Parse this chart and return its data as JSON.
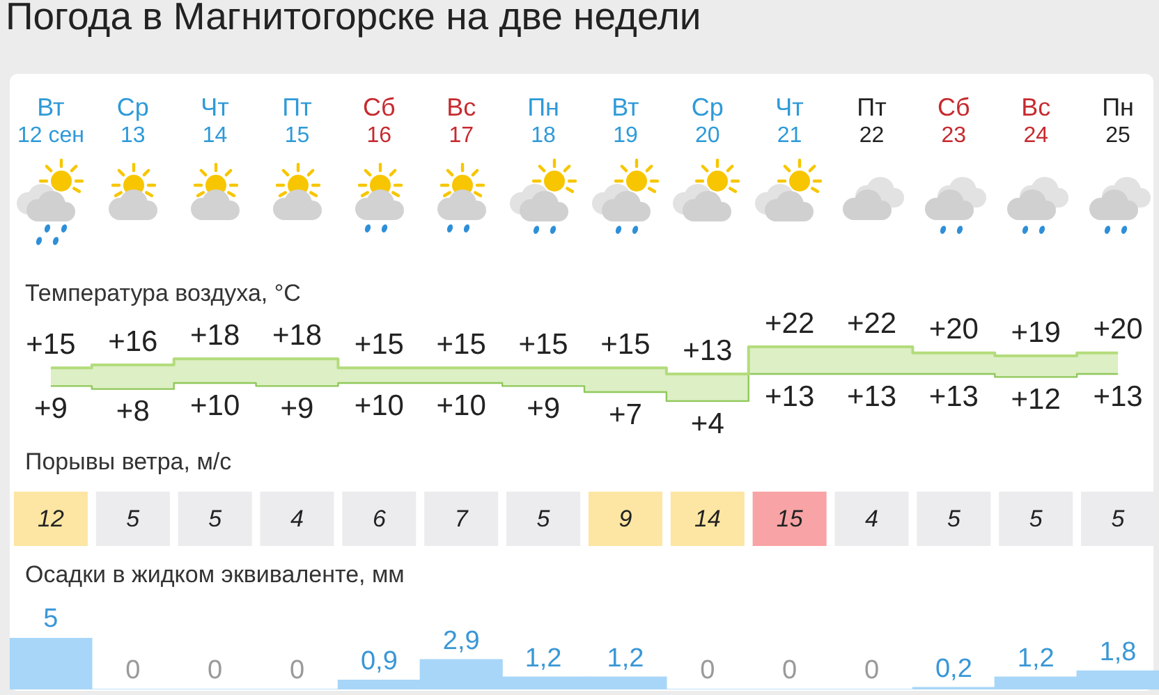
{
  "chart_data": [
    {
      "type": "step",
      "title": "Погода в Магнитогорске на две недели",
      "subtitle": "Температура воздуха, °C",
      "categories": [
        "Вт 12 сен",
        "Ср 13",
        "Чт 14",
        "Пт 15",
        "Сб 16",
        "Вс 17",
        "Пн 18",
        "Вт 19",
        "Ср 20",
        "Чт 21",
        "Пт 22",
        "Сб 23",
        "Вс 24",
        "Пн 25"
      ],
      "series": [
        {
          "values": [
            15,
            16,
            18,
            18,
            15,
            15,
            15,
            15,
            13,
            22,
            22,
            20,
            19,
            20
          ],
          "lower": [
            9,
            8,
            10,
            9,
            10,
            10,
            9,
            7,
            4,
            13,
            13,
            13,
            12,
            13
          ],
          "upper": [
            15,
            16,
            18,
            18,
            15,
            15,
            15,
            15,
            13,
            22,
            22,
            20,
            19,
            20
          ],
          "color": "#b3dc7c",
          "value_labels": [
            "+15",
            "+16",
            "+18",
            "+18",
            "+15",
            "+15",
            "+15",
            "+15",
            "+13",
            "+22",
            "+22",
            "+20",
            "+19",
            "+20"
          ]
        },
        {
          "values": [
            9,
            8,
            10,
            9,
            10,
            10,
            9,
            7,
            4,
            13,
            13,
            13,
            12,
            13
          ],
          "color": "#8fc85a",
          "value_labels": [
            "+9",
            "+8",
            "+10",
            "+9",
            "+10",
            "+10",
            "+9",
            "+7",
            "+4",
            "+13",
            "+13",
            "+13",
            "+12",
            "+13"
          ]
        }
      ],
      "tick_labels": "x"
    },
    {
      "type": "heatmap",
      "title": "Порывы ветра, м/с",
      "categories": [
        null,
        null,
        null,
        null,
        null,
        null,
        null,
        null,
        null,
        null,
        null,
        null,
        null,
        null
      ],
      "y_categories": [
        null
      ],
      "cells": [
        [
          12,
          5,
          5,
          4,
          6,
          7,
          5,
          9,
          14,
          15,
          4,
          5,
          5,
          5
        ]
      ],
      "colors": [
        "#fde6a3",
        "#ececee",
        "#ececee",
        "#ececee",
        "#ececee",
        "#ececee",
        "#ececee",
        "#fde6a3",
        "#fde6a3",
        "#f8a3a5",
        "#ececee",
        "#ececee",
        "#ececee",
        "#ececee"
      ],
      "data_labels": true,
      "tick_labels": false
    },
    {
      "type": "bar",
      "title": "Осадки в жидком эквиваленте, мм",
      "categories": [
        null,
        null,
        null,
        null,
        null,
        null,
        null,
        null,
        null,
        null,
        null,
        null,
        null,
        null
      ],
      "values": [
        5,
        0,
        0,
        0,
        0.9,
        2.9,
        1.2,
        1.2,
        0,
        0,
        0,
        0.2,
        1.2,
        1.8
      ],
      "value_labels": [
        "5",
        "0",
        "0",
        "0",
        "0,9",
        "2,9",
        "1,2",
        "1,2",
        "0",
        "0",
        "0",
        "0,2",
        "1,2",
        "1,8"
      ],
      "color": "#a7d6f8",
      "tick_labels": false
    }
  ]
}
